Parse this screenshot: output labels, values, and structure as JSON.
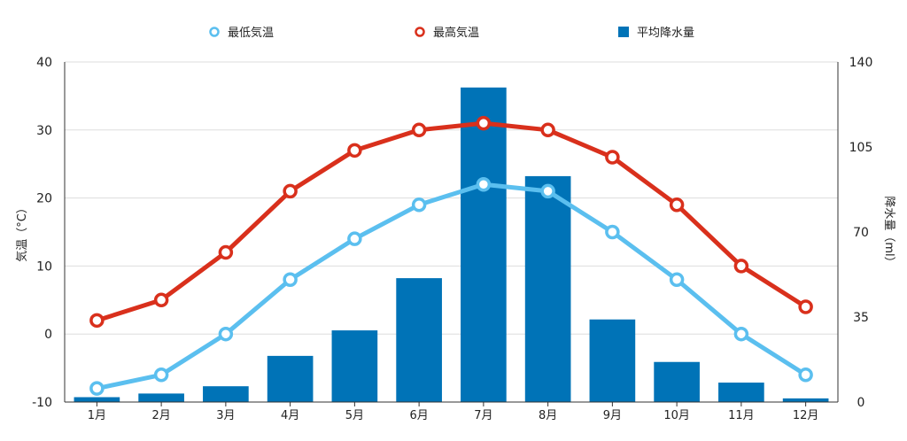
{
  "chart_data": {
    "type": "bar+line",
    "categories": [
      "1月",
      "2月",
      "3月",
      "4月",
      "5月",
      "6月",
      "7月",
      "8月",
      "9月",
      "10月",
      "11月",
      "12月"
    ],
    "series": [
      {
        "name": "最低気温",
        "kind": "line",
        "axis": "left",
        "color": "#5bbfef",
        "values": [
          -8,
          -6,
          0,
          8,
          14,
          19,
          22,
          21,
          15,
          8,
          0,
          -6
        ]
      },
      {
        "name": "最高気温",
        "kind": "line",
        "axis": "left",
        "color": "#d9301c",
        "values": [
          2,
          5,
          12,
          21,
          27,
          30,
          31,
          30,
          26,
          19,
          10,
          4
        ]
      },
      {
        "name": "平均降水量",
        "kind": "bar",
        "axis": "right",
        "color": "#0073b7",
        "values": [
          2,
          3.5,
          6.5,
          19,
          29.5,
          51,
          129.5,
          93,
          34,
          16.5,
          8,
          1.5
        ]
      }
    ],
    "ylabel": "気温（°C）",
    "ylabel_right": "降水量（ml）",
    "ylim": [
      -10,
      40
    ],
    "ylim_right": [
      0,
      140
    ],
    "yticks": [
      "40",
      "30",
      "20",
      "10",
      "0",
      "-10"
    ],
    "yticks_right": [
      "140",
      "105",
      "70",
      "35",
      "0"
    ],
    "grid": true,
    "legend_position": "top-center"
  }
}
